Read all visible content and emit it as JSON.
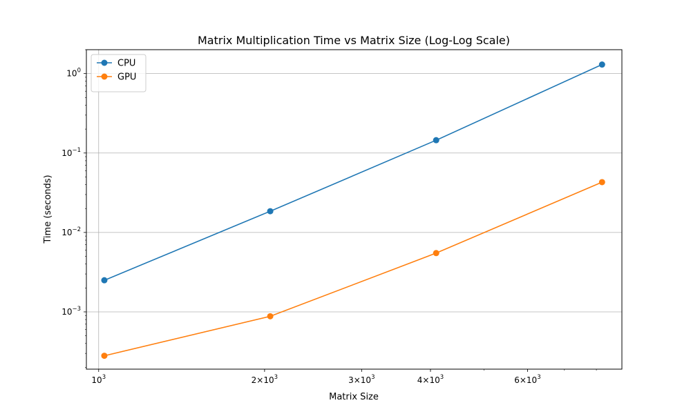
{
  "chart_data": {
    "type": "line",
    "title": "Matrix Multiplication Time vs Matrix Size (Log-Log Scale)",
    "xlabel": "Matrix Size",
    "ylabel": "Time (seconds)",
    "x_scale": "log",
    "y_scale": "log",
    "xlim": [
      950,
      8900
    ],
    "ylim": [
      0.00019,
      2.0
    ],
    "grid": true,
    "legend_placement": "top-left",
    "x_ticks": [
      {
        "value": 1000,
        "base": "10",
        "exp": "3"
      },
      {
        "value": 2000,
        "base": "2×10",
        "exp": "3"
      },
      {
        "value": 3000,
        "base": "3×10",
        "exp": "3"
      },
      {
        "value": 4000,
        "base": "4×10",
        "exp": "3"
      },
      {
        "value": 6000,
        "base": "6×10",
        "exp": "3"
      }
    ],
    "y_ticks": [
      {
        "value": 0.001,
        "base": "10",
        "exp": "−3"
      },
      {
        "value": 0.01,
        "base": "10",
        "exp": "−2"
      },
      {
        "value": 0.1,
        "base": "10",
        "exp": "−1"
      },
      {
        "value": 1,
        "base": "10",
        "exp": "0"
      }
    ],
    "x": [
      1024,
      2048,
      4096,
      8192
    ],
    "series": [
      {
        "name": "CPU",
        "color": "#1f77b4",
        "values": [
          0.0025,
          0.0185,
          0.145,
          1.3
        ]
      },
      {
        "name": "GPU",
        "color": "#ff7f0e",
        "values": [
          0.00028,
          0.00088,
          0.0055,
          0.043
        ]
      }
    ]
  }
}
